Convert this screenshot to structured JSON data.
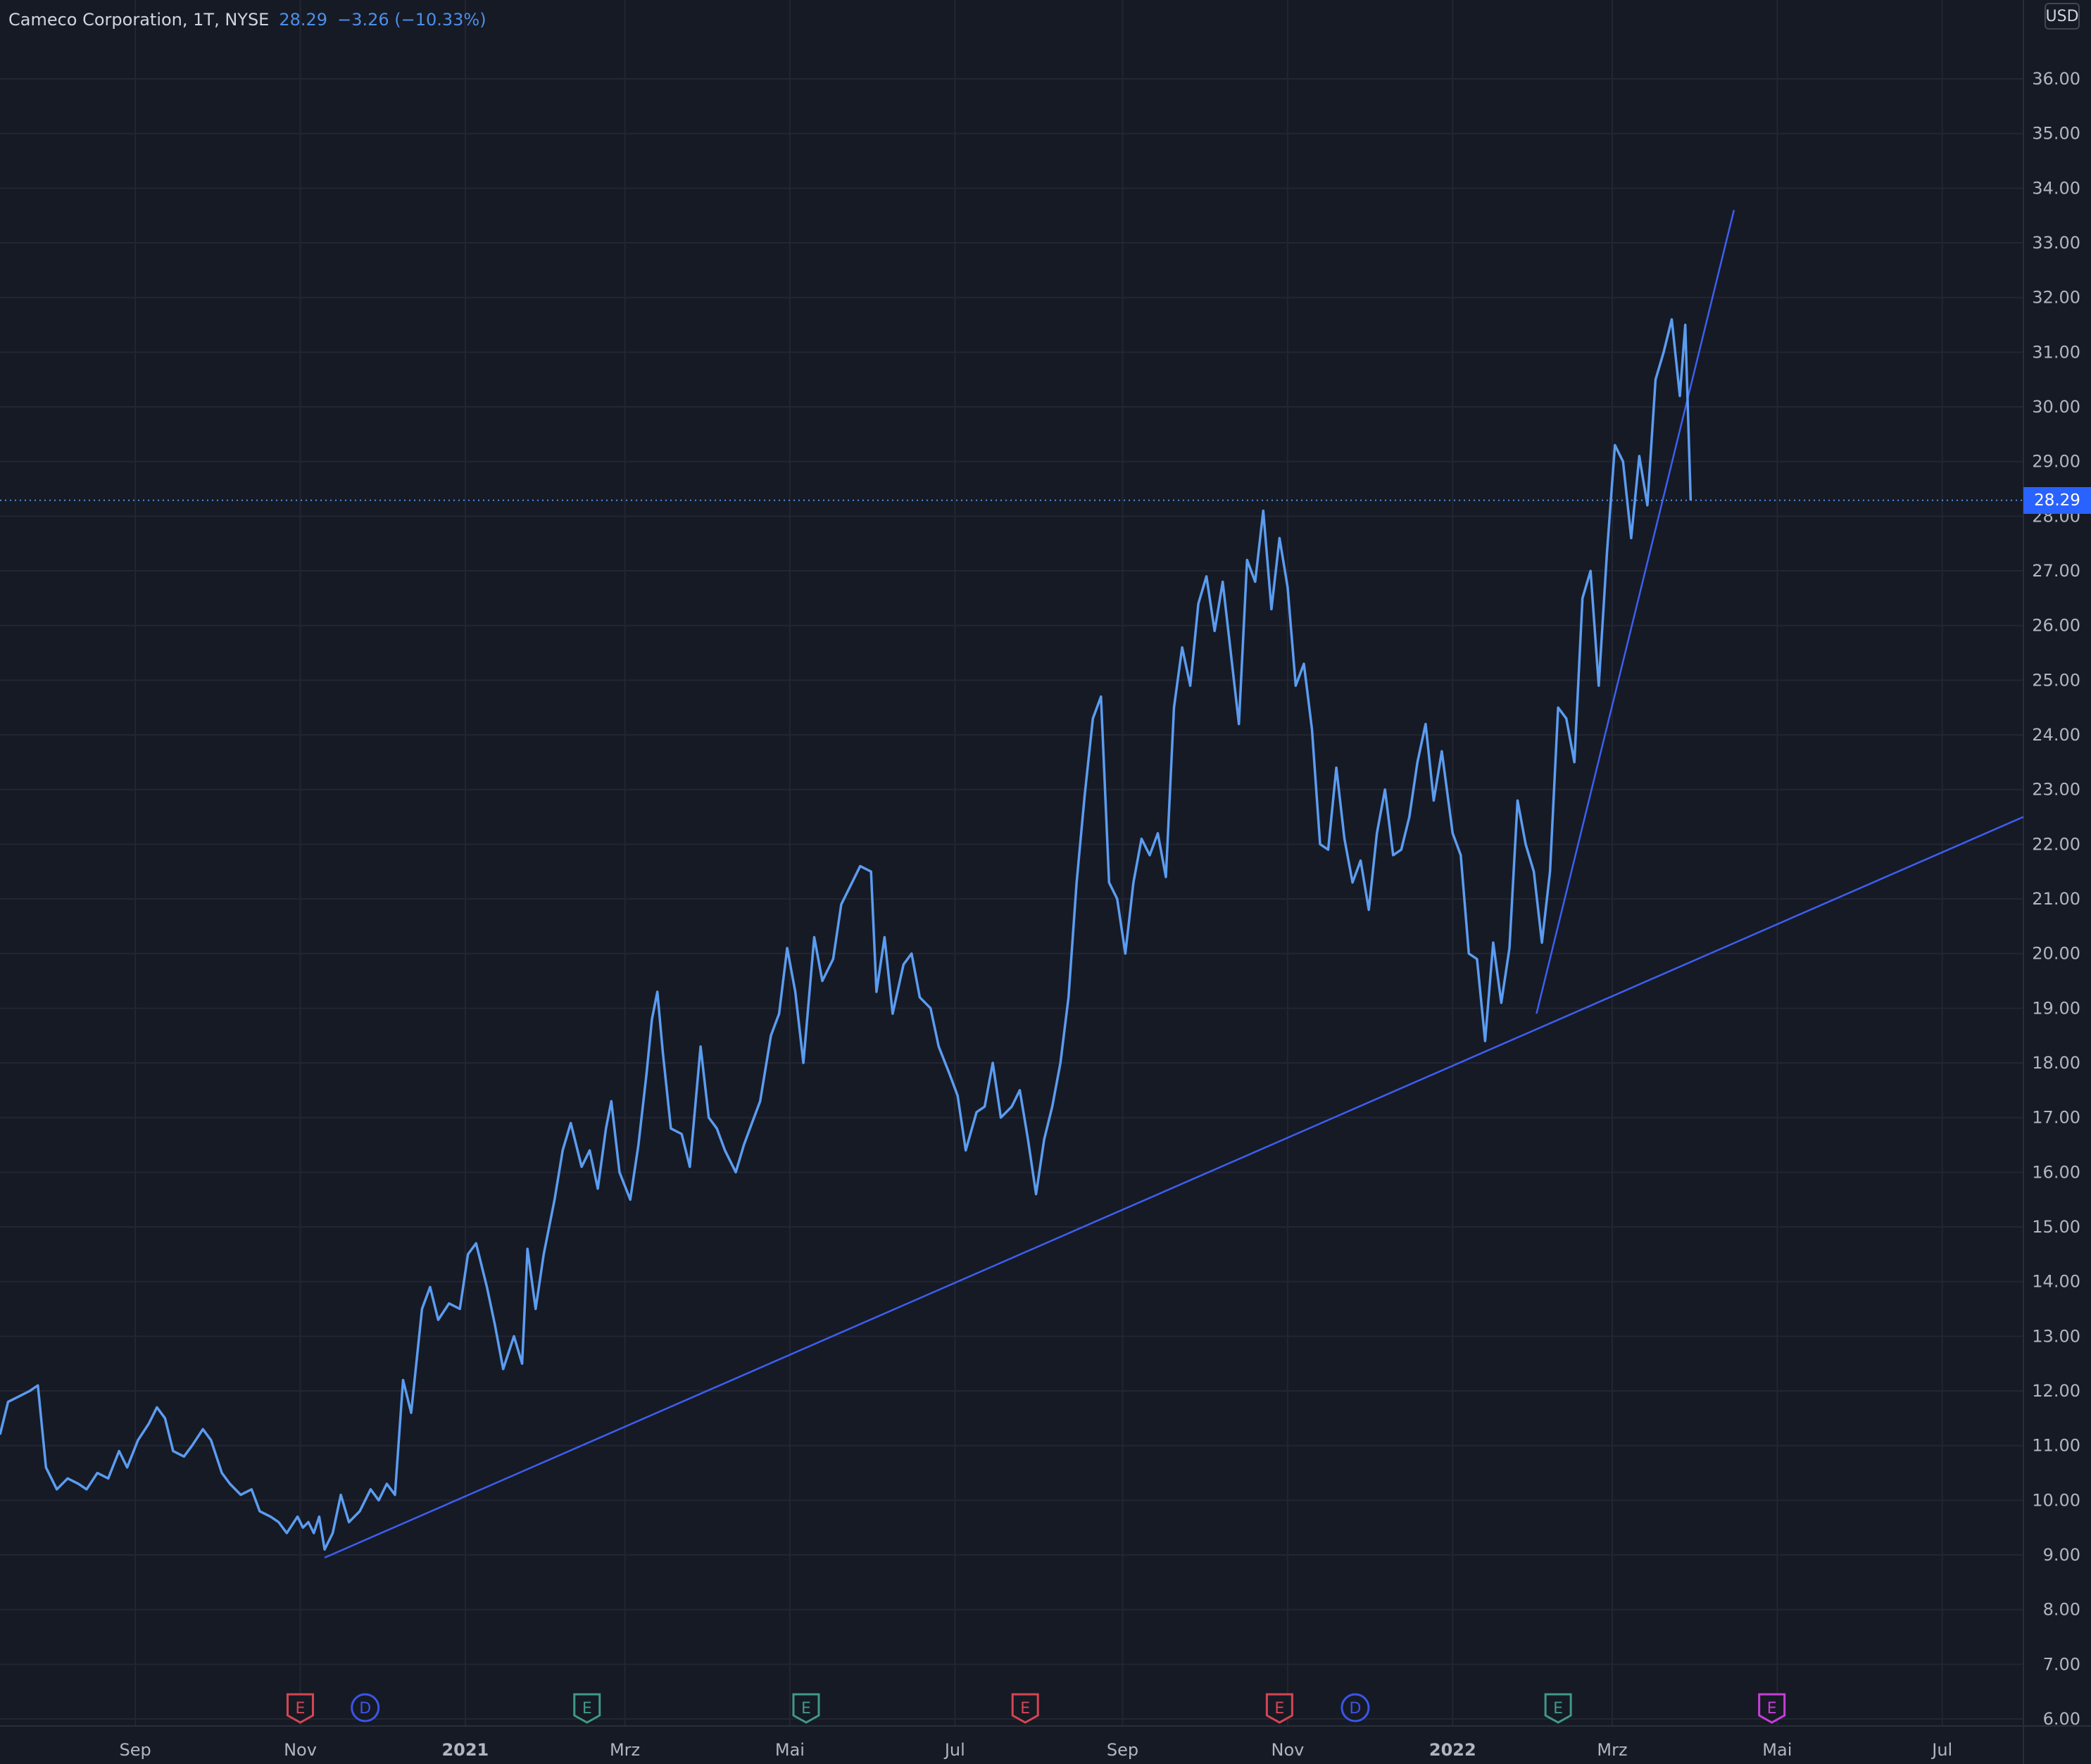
{
  "legend": {
    "symbol": "Cameco Corporation, 1T, NYSE",
    "last": "28.29",
    "change": "−3.26 (−10.33%)"
  },
  "axis": {
    "currency": "USD",
    "last_price_tag": "28.29"
  },
  "colors": {
    "background": "#161a25",
    "grid": "#232632",
    "price_line": "#5b9cf0",
    "trend_line": "#3d5ff0",
    "axis_text": "#b2b5be",
    "earnings_red": "#d64553",
    "earnings_green": "#3f9a83",
    "dividend_blue": "#3b55e8",
    "earnings_magenta": "#c83ed8"
  },
  "chart_data": {
    "type": "line",
    "title": "Cameco Corporation, 1T, NYSE",
    "ylabel": "USD",
    "ylim": [
      6,
      36.5
    ],
    "yticks": [
      "6.00",
      "7.00",
      "8.00",
      "9.00",
      "10.00",
      "11.00",
      "12.00",
      "13.00",
      "14.00",
      "15.00",
      "16.00",
      "17.00",
      "18.00",
      "19.00",
      "20.00",
      "21.00",
      "22.00",
      "23.00",
      "24.00",
      "25.00",
      "26.00",
      "27.00",
      "28.00",
      "29.00",
      "30.00",
      "31.00",
      "32.00",
      "33.00",
      "34.00",
      "35.00",
      "36.00"
    ],
    "xlim": [
      "2020-07-13",
      "2022-07-31"
    ],
    "xticks": [
      {
        "date": "2020-09-01",
        "label": "Sep"
      },
      {
        "date": "2020-11-01",
        "label": "Nov"
      },
      {
        "date": "2021-01-01",
        "label": "2021"
      },
      {
        "date": "2021-03-01",
        "label": "Mrz"
      },
      {
        "date": "2021-05-01",
        "label": "Mai"
      },
      {
        "date": "2021-07-01",
        "label": "Jul"
      },
      {
        "date": "2021-09-01",
        "label": "Sep"
      },
      {
        "date": "2021-11-01",
        "label": "Nov"
      },
      {
        "date": "2022-01-01",
        "label": "2022"
      },
      {
        "date": "2022-03-01",
        "label": "Mrz"
      },
      {
        "date": "2022-05-01",
        "label": "Mai"
      },
      {
        "date": "2022-07-01",
        "label": "Jul"
      }
    ],
    "grid": true,
    "series": [
      {
        "points": [
          [
            "2020-07-13",
            11.2
          ],
          [
            "2020-07-16",
            11.8
          ],
          [
            "2020-07-20",
            11.9
          ],
          [
            "2020-07-24",
            12.0
          ],
          [
            "2020-07-27",
            12.1
          ],
          [
            "2020-07-30",
            10.6
          ],
          [
            "2020-08-03",
            10.2
          ],
          [
            "2020-08-07",
            10.4
          ],
          [
            "2020-08-11",
            10.3
          ],
          [
            "2020-08-14",
            10.2
          ],
          [
            "2020-08-18",
            10.5
          ],
          [
            "2020-08-22",
            10.4
          ],
          [
            "2020-08-26",
            10.9
          ],
          [
            "2020-08-29",
            10.6
          ],
          [
            "2020-09-02",
            11.1
          ],
          [
            "2020-09-06",
            11.4
          ],
          [
            "2020-09-09",
            11.7
          ],
          [
            "2020-09-12",
            11.5
          ],
          [
            "2020-09-15",
            10.9
          ],
          [
            "2020-09-19",
            10.8
          ],
          [
            "2020-09-22",
            11.0
          ],
          [
            "2020-09-26",
            11.3
          ],
          [
            "2020-09-29",
            11.1
          ],
          [
            "2020-10-03",
            10.5
          ],
          [
            "2020-10-06",
            10.3
          ],
          [
            "2020-10-10",
            10.1
          ],
          [
            "2020-10-14",
            10.2
          ],
          [
            "2020-10-17",
            9.8
          ],
          [
            "2020-10-21",
            9.7
          ],
          [
            "2020-10-24",
            9.6
          ],
          [
            "2020-10-27",
            9.4
          ],
          [
            "2020-10-31",
            9.7
          ],
          [
            "2020-11-02",
            9.5
          ],
          [
            "2020-11-04",
            9.6
          ],
          [
            "2020-11-06",
            9.4
          ],
          [
            "2020-11-08",
            9.7
          ],
          [
            "2020-11-10",
            9.1
          ],
          [
            "2020-11-13",
            9.4
          ],
          [
            "2020-11-16",
            10.1
          ],
          [
            "2020-11-19",
            9.6
          ],
          [
            "2020-11-23",
            9.8
          ],
          [
            "2020-11-27",
            10.2
          ],
          [
            "2020-11-30",
            10.0
          ],
          [
            "2020-12-03",
            10.3
          ],
          [
            "2020-12-06",
            10.1
          ],
          [
            "2020-12-09",
            12.2
          ],
          [
            "2020-12-12",
            11.6
          ],
          [
            "2020-12-16",
            13.5
          ],
          [
            "2020-12-19",
            13.9
          ],
          [
            "2020-12-22",
            13.3
          ],
          [
            "2020-12-26",
            13.6
          ],
          [
            "2020-12-30",
            13.5
          ],
          [
            "2021-01-02",
            14.5
          ],
          [
            "2021-01-05",
            14.7
          ],
          [
            "2021-01-09",
            13.9
          ],
          [
            "2021-01-12",
            13.2
          ],
          [
            "2021-01-15",
            12.4
          ],
          [
            "2021-01-19",
            13.0
          ],
          [
            "2021-01-22",
            12.5
          ],
          [
            "2021-01-24",
            14.6
          ],
          [
            "2021-01-27",
            13.5
          ],
          [
            "2021-01-30",
            14.5
          ],
          [
            "2021-02-03",
            15.5
          ],
          [
            "2021-02-06",
            16.4
          ],
          [
            "2021-02-09",
            16.9
          ],
          [
            "2021-02-13",
            16.1
          ],
          [
            "2021-02-16",
            16.4
          ],
          [
            "2021-02-19",
            15.7
          ],
          [
            "2021-02-22",
            16.8
          ],
          [
            "2021-02-24",
            17.3
          ],
          [
            "2021-02-27",
            16.0
          ],
          [
            "2021-03-03",
            15.5
          ],
          [
            "2021-03-06",
            16.5
          ],
          [
            "2021-03-09",
            17.8
          ],
          [
            "2021-03-11",
            18.8
          ],
          [
            "2021-03-13",
            19.3
          ],
          [
            "2021-03-15",
            18.2
          ],
          [
            "2021-03-18",
            16.8
          ],
          [
            "2021-03-22",
            16.7
          ],
          [
            "2021-03-25",
            16.1
          ],
          [
            "2021-03-29",
            18.3
          ],
          [
            "2021-04-01",
            17.0
          ],
          [
            "2021-04-04",
            16.8
          ],
          [
            "2021-04-07",
            16.4
          ],
          [
            "2021-04-11",
            16.0
          ],
          [
            "2021-04-14",
            16.5
          ],
          [
            "2021-04-17",
            16.9
          ],
          [
            "2021-04-20",
            17.3
          ],
          [
            "2021-04-24",
            18.5
          ],
          [
            "2021-04-27",
            18.9
          ],
          [
            "2021-04-30",
            20.1
          ],
          [
            "2021-05-03",
            19.3
          ],
          [
            "2021-05-06",
            18.0
          ],
          [
            "2021-05-10",
            20.3
          ],
          [
            "2021-05-13",
            19.5
          ],
          [
            "2021-05-17",
            19.9
          ],
          [
            "2021-05-20",
            20.9
          ],
          [
            "2021-05-24",
            21.3
          ],
          [
            "2021-05-27",
            21.6
          ],
          [
            "2021-05-31",
            21.5
          ],
          [
            "2021-06-02",
            19.3
          ],
          [
            "2021-06-05",
            20.3
          ],
          [
            "2021-06-08",
            18.9
          ],
          [
            "2021-06-12",
            19.8
          ],
          [
            "2021-06-15",
            20.0
          ],
          [
            "2021-06-18",
            19.2
          ],
          [
            "2021-06-22",
            19.0
          ],
          [
            "2021-06-25",
            18.3
          ],
          [
            "2021-06-29",
            17.8
          ],
          [
            "2021-07-02",
            17.4
          ],
          [
            "2021-07-05",
            16.4
          ],
          [
            "2021-07-09",
            17.1
          ],
          [
            "2021-07-12",
            17.2
          ],
          [
            "2021-07-15",
            18.0
          ],
          [
            "2021-07-18",
            17.0
          ],
          [
            "2021-07-22",
            17.2
          ],
          [
            "2021-07-25",
            17.5
          ],
          [
            "2021-07-28",
            16.6
          ],
          [
            "2021-07-31",
            15.6
          ],
          [
            "2021-08-03",
            16.6
          ],
          [
            "2021-08-06",
            17.2
          ],
          [
            "2021-08-09",
            18.0
          ],
          [
            "2021-08-12",
            19.2
          ],
          [
            "2021-08-15",
            21.3
          ],
          [
            "2021-08-18",
            22.9
          ],
          [
            "2021-08-21",
            24.3
          ],
          [
            "2021-08-24",
            24.7
          ],
          [
            "2021-08-27",
            21.3
          ],
          [
            "2021-08-30",
            21.0
          ],
          [
            "2021-09-02",
            20.0
          ],
          [
            "2021-09-05",
            21.3
          ],
          [
            "2021-09-08",
            22.1
          ],
          [
            "2021-09-11",
            21.8
          ],
          [
            "2021-09-14",
            22.2
          ],
          [
            "2021-09-17",
            21.4
          ],
          [
            "2021-09-20",
            24.5
          ],
          [
            "2021-09-23",
            25.6
          ],
          [
            "2021-09-26",
            24.9
          ],
          [
            "2021-09-29",
            26.4
          ],
          [
            "2021-10-02",
            26.9
          ],
          [
            "2021-10-05",
            25.9
          ],
          [
            "2021-10-08",
            26.8
          ],
          [
            "2021-10-11",
            25.5
          ],
          [
            "2021-10-14",
            24.2
          ],
          [
            "2021-10-17",
            27.2
          ],
          [
            "2021-10-20",
            26.8
          ],
          [
            "2021-10-23",
            28.1
          ],
          [
            "2021-10-26",
            26.3
          ],
          [
            "2021-10-29",
            27.6
          ],
          [
            "2021-11-01",
            26.7
          ],
          [
            "2021-11-04",
            24.9
          ],
          [
            "2021-11-07",
            25.3
          ],
          [
            "2021-11-10",
            24.1
          ],
          [
            "2021-11-13",
            22.0
          ],
          [
            "2021-11-16",
            21.9
          ],
          [
            "2021-11-19",
            23.4
          ],
          [
            "2021-11-22",
            22.1
          ],
          [
            "2021-11-25",
            21.3
          ],
          [
            "2021-11-28",
            21.7
          ],
          [
            "2021-12-01",
            20.8
          ],
          [
            "2021-12-04",
            22.2
          ],
          [
            "2021-12-07",
            23.0
          ],
          [
            "2021-12-10",
            21.8
          ],
          [
            "2021-12-13",
            21.9
          ],
          [
            "2021-12-16",
            22.5
          ],
          [
            "2021-12-19",
            23.5
          ],
          [
            "2021-12-22",
            24.2
          ],
          [
            "2021-12-25",
            22.8
          ],
          [
            "2021-12-28",
            23.7
          ],
          [
            "2022-01-01",
            22.2
          ],
          [
            "2022-01-04",
            21.8
          ],
          [
            "2022-01-07",
            20.0
          ],
          [
            "2022-01-10",
            19.9
          ],
          [
            "2022-01-13",
            18.4
          ],
          [
            "2022-01-16",
            20.2
          ],
          [
            "2022-01-19",
            19.1
          ],
          [
            "2022-01-22",
            20.1
          ],
          [
            "2022-01-25",
            22.8
          ],
          [
            "2022-01-28",
            22.0
          ],
          [
            "2022-01-31",
            21.5
          ],
          [
            "2022-02-03",
            20.2
          ],
          [
            "2022-02-06",
            21.5
          ],
          [
            "2022-02-09",
            24.5
          ],
          [
            "2022-02-12",
            24.3
          ],
          [
            "2022-02-15",
            23.5
          ],
          [
            "2022-02-18",
            26.5
          ],
          [
            "2022-02-21",
            27.0
          ],
          [
            "2022-02-24",
            24.9
          ],
          [
            "2022-02-27",
            27.3
          ],
          [
            "2022-03-02",
            29.3
          ],
          [
            "2022-03-05",
            29.0
          ],
          [
            "2022-03-08",
            27.6
          ],
          [
            "2022-03-11",
            29.1
          ],
          [
            "2022-03-14",
            28.2
          ],
          [
            "2022-03-17",
            30.5
          ],
          [
            "2022-03-20",
            31.0
          ],
          [
            "2022-03-23",
            31.6
          ],
          [
            "2022-03-26",
            30.2
          ],
          [
            "2022-03-28",
            31.5
          ],
          [
            "2022-03-30",
            28.29
          ]
        ]
      }
    ],
    "trend_lines": [
      {
        "from": [
          "2020-11-10",
          8.95
        ],
        "to": [
          "2022-07-31",
          22.5
        ]
      },
      {
        "from": [
          "2022-02-01",
          18.9
        ],
        "to": [
          "2022-04-15",
          33.6
        ]
      }
    ],
    "last_value": 28.29,
    "events": [
      {
        "date": "2020-11-01",
        "label": "E",
        "kind": "earnings_red"
      },
      {
        "date": "2020-11-25",
        "label": "D",
        "kind": "dividend_blue"
      },
      {
        "date": "2021-02-15",
        "label": "E",
        "kind": "earnings_green"
      },
      {
        "date": "2021-05-07",
        "label": "E",
        "kind": "earnings_green"
      },
      {
        "date": "2021-07-27",
        "label": "E",
        "kind": "earnings_red"
      },
      {
        "date": "2021-10-29",
        "label": "E",
        "kind": "earnings_red"
      },
      {
        "date": "2021-11-26",
        "label": "D",
        "kind": "dividend_blue"
      },
      {
        "date": "2022-02-09",
        "label": "E",
        "kind": "earnings_green"
      },
      {
        "date": "2022-04-29",
        "label": "E",
        "kind": "earnings_magenta"
      }
    ]
  }
}
